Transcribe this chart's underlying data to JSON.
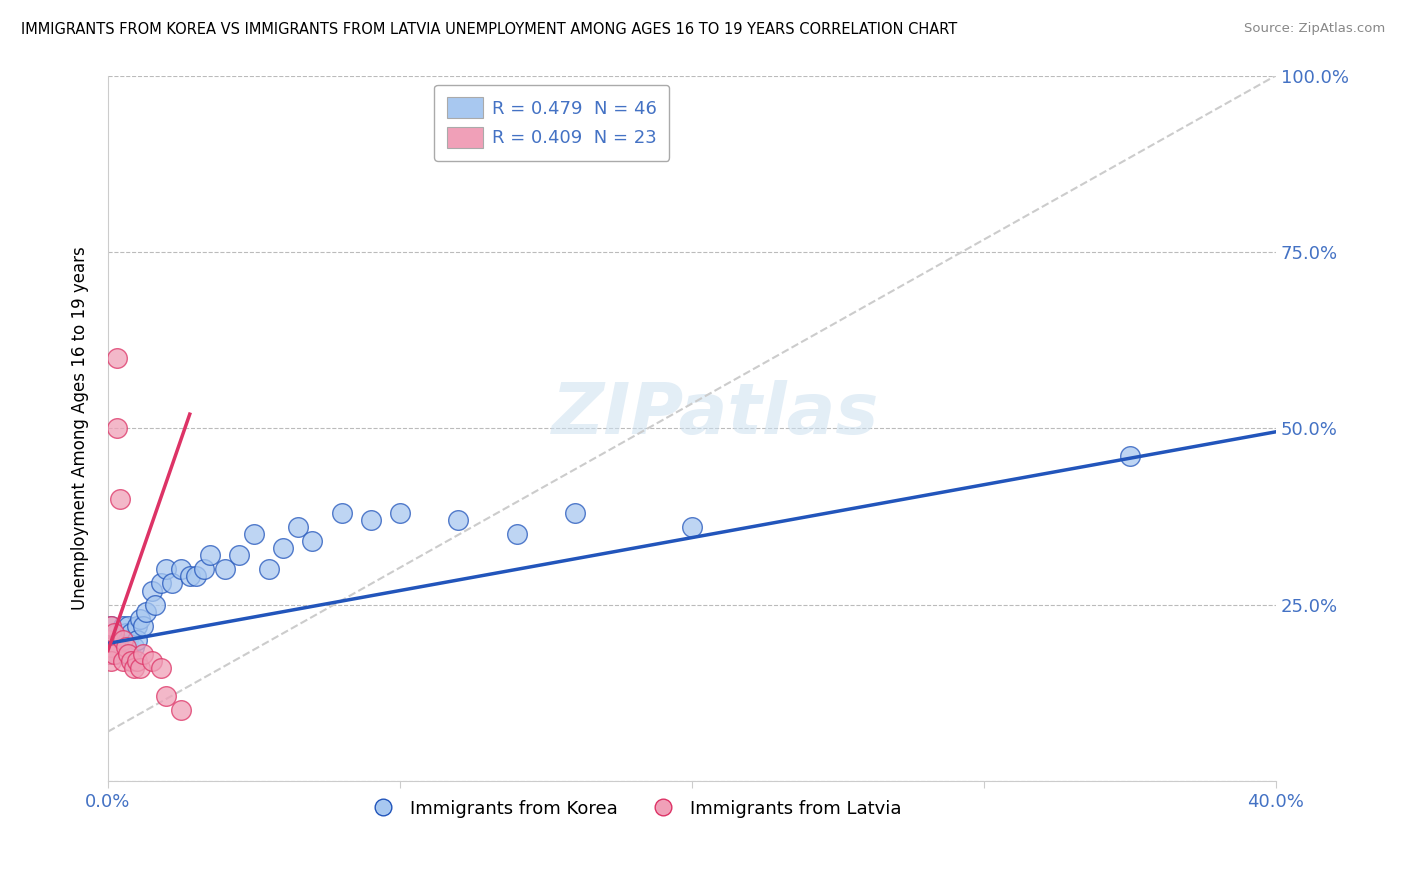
{
  "title": "IMMIGRANTS FROM KOREA VS IMMIGRANTS FROM LATVIA UNEMPLOYMENT AMONG AGES 16 TO 19 YEARS CORRELATION CHART",
  "source": "Source: ZipAtlas.com",
  "ylabel": "Unemployment Among Ages 16 to 19 years",
  "xlim": [
    0.0,
    0.4
  ],
  "ylim": [
    0.0,
    1.0
  ],
  "ytick_labels": [
    "",
    "25.0%",
    "50.0%",
    "75.0%",
    "100.0%"
  ],
  "yticks": [
    0.0,
    0.25,
    0.5,
    0.75,
    1.0
  ],
  "legend_korea": "R = 0.479  N = 46",
  "legend_latvia": "R = 0.409  N = 23",
  "legend_label_korea": "Immigrants from Korea",
  "legend_label_latvia": "Immigrants from Latvia",
  "color_korea": "#a8c8f0",
  "color_latvia": "#f0a0b8",
  "color_korea_line": "#2255bb",
  "color_latvia_line": "#dd3366",
  "korea_R": 0.479,
  "korea_N": 46,
  "latvia_R": 0.409,
  "latvia_N": 23,
  "korea_scatter_x": [
    0.0,
    0.001,
    0.001,
    0.002,
    0.003,
    0.003,
    0.004,
    0.005,
    0.005,
    0.006,
    0.006,
    0.007,
    0.007,
    0.008,
    0.008,
    0.009,
    0.01,
    0.01,
    0.011,
    0.012,
    0.013,
    0.015,
    0.016,
    0.018,
    0.02,
    0.022,
    0.025,
    0.028,
    0.03,
    0.033,
    0.035,
    0.04,
    0.045,
    0.05,
    0.055,
    0.06,
    0.065,
    0.07,
    0.08,
    0.09,
    0.1,
    0.12,
    0.14,
    0.16,
    0.2,
    0.35
  ],
  "korea_scatter_y": [
    0.18,
    0.2,
    0.22,
    0.19,
    0.21,
    0.18,
    0.2,
    0.22,
    0.19,
    0.21,
    0.18,
    0.2,
    0.22,
    0.18,
    0.21,
    0.19,
    0.22,
    0.2,
    0.23,
    0.22,
    0.24,
    0.27,
    0.25,
    0.28,
    0.3,
    0.28,
    0.3,
    0.29,
    0.29,
    0.3,
    0.32,
    0.3,
    0.32,
    0.35,
    0.3,
    0.33,
    0.36,
    0.34,
    0.38,
    0.37,
    0.38,
    0.37,
    0.35,
    0.38,
    0.36,
    0.46
  ],
  "korea_line_x": [
    0.0,
    0.4
  ],
  "korea_line_y": [
    0.195,
    0.495
  ],
  "latvia_scatter_x": [
    0.0,
    0.0,
    0.001,
    0.001,
    0.001,
    0.002,
    0.002,
    0.003,
    0.003,
    0.004,
    0.005,
    0.005,
    0.006,
    0.007,
    0.008,
    0.009,
    0.01,
    0.011,
    0.012,
    0.015,
    0.018,
    0.02,
    0.025
  ],
  "latvia_scatter_y": [
    0.2,
    0.18,
    0.22,
    0.19,
    0.17,
    0.21,
    0.18,
    0.6,
    0.5,
    0.4,
    0.2,
    0.17,
    0.19,
    0.18,
    0.17,
    0.16,
    0.17,
    0.16,
    0.18,
    0.17,
    0.16,
    0.12,
    0.1
  ],
  "latvia_line_x": [
    0.0,
    0.028
  ],
  "latvia_line_y": [
    0.185,
    0.52
  ],
  "diag_line_x": [
    0.0,
    0.4
  ],
  "diag_line_y": [
    0.07,
    1.0
  ]
}
